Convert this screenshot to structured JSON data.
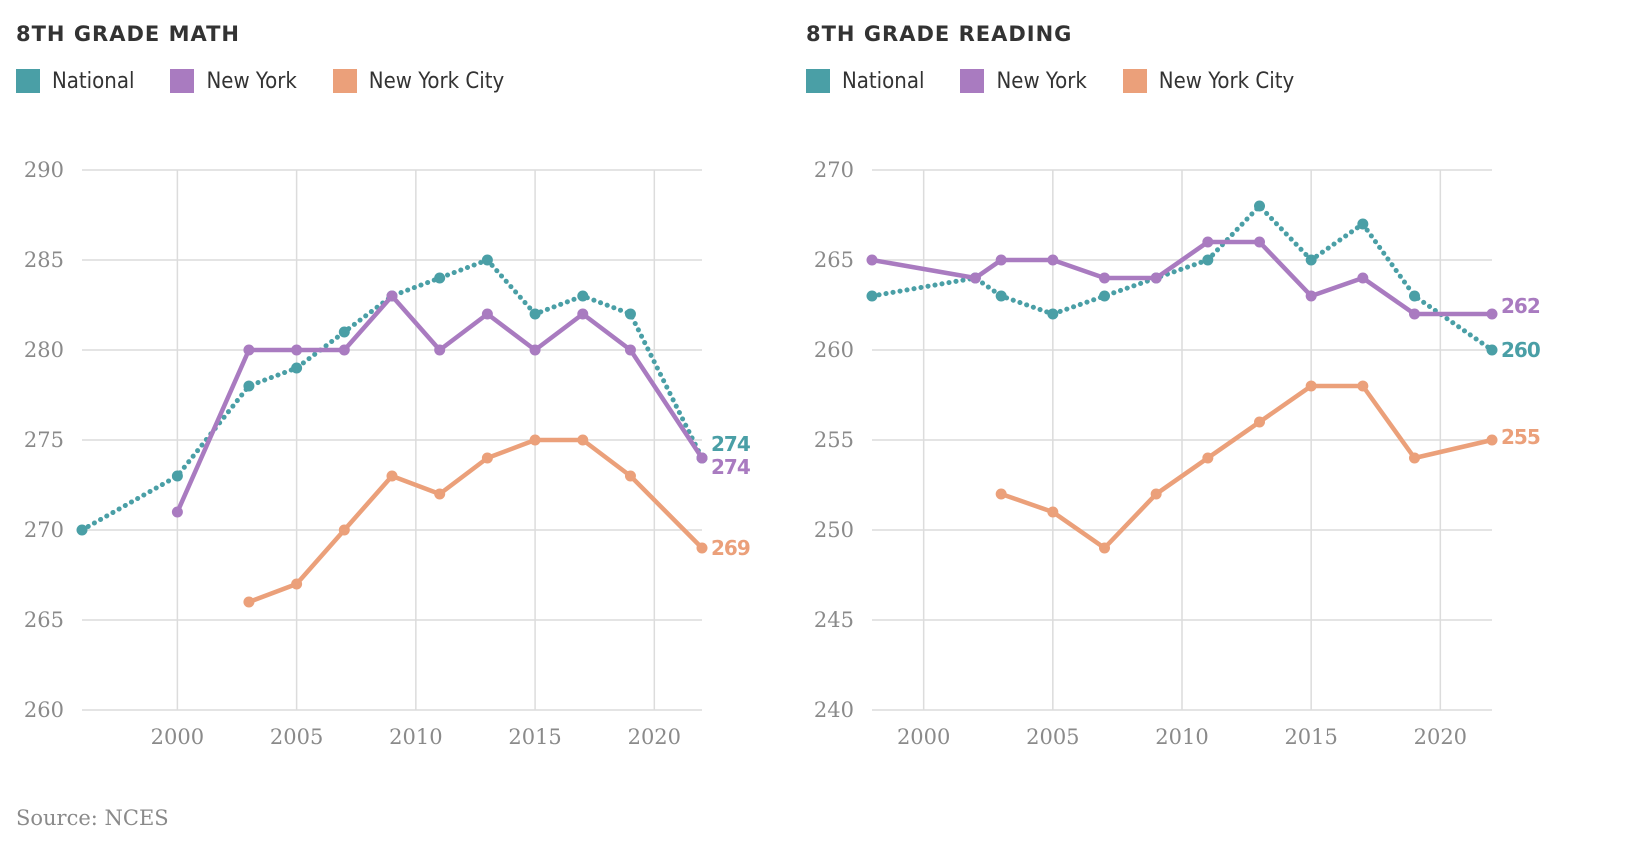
{
  "series_colors": {
    "National": "#4a9fa6",
    "New York": "#a97bc0",
    "New York City": "#eba07a"
  },
  "source": "Source: NCES",
  "chart_data": [
    {
      "type": "line",
      "title": "8TH GRADE MATH",
      "xlabel": "",
      "ylabel": "",
      "xlim": [
        1996,
        2022
      ],
      "ylim": [
        260,
        290
      ],
      "xticks": [
        2000,
        2005,
        2010,
        2015,
        2020
      ],
      "yticks": [
        290,
        285,
        280,
        275,
        270,
        265,
        260
      ],
      "grid": true,
      "legend_position": "top-left",
      "series": [
        {
          "name": "National",
          "style": "dotted",
          "x": [
            1996,
            2000,
            2003,
            2005,
            2007,
            2009,
            2011,
            2013,
            2015,
            2017,
            2019,
            2022
          ],
          "values": [
            270,
            273,
            278,
            279,
            281,
            283,
            284,
            285,
            282,
            283,
            282,
            274
          ],
          "end_label": "274"
        },
        {
          "name": "New York",
          "style": "solid",
          "x": [
            2000,
            2003,
            2005,
            2007,
            2009,
            2011,
            2013,
            2015,
            2017,
            2019,
            2022
          ],
          "values": [
            271,
            280,
            280,
            280,
            283,
            280,
            282,
            280,
            282,
            280,
            274
          ],
          "end_label": "274"
        },
        {
          "name": "New York City",
          "style": "solid",
          "x": [
            2003,
            2005,
            2007,
            2009,
            2011,
            2013,
            2015,
            2017,
            2019,
            2022
          ],
          "values": [
            266,
            267,
            270,
            273,
            272,
            274,
            275,
            275,
            273,
            269
          ],
          "end_label": "269"
        }
      ]
    },
    {
      "type": "line",
      "title": "8TH GRADE READING",
      "xlabel": "",
      "ylabel": "",
      "xlim": [
        1998,
        2022
      ],
      "ylim": [
        240,
        270
      ],
      "xticks": [
        2000,
        2005,
        2010,
        2015,
        2020
      ],
      "yticks": [
        270,
        265,
        260,
        255,
        250,
        245,
        240
      ],
      "grid": true,
      "legend_position": "top-left",
      "series": [
        {
          "name": "National",
          "style": "dotted",
          "x": [
            1998,
            2002,
            2003,
            2005,
            2007,
            2009,
            2011,
            2013,
            2015,
            2017,
            2019,
            2022
          ],
          "values": [
            263,
            264,
            263,
            262,
            263,
            264,
            265,
            268,
            265,
            267,
            263,
            260
          ],
          "end_label": "260"
        },
        {
          "name": "New York",
          "style": "solid",
          "x": [
            1998,
            2002,
            2003,
            2005,
            2007,
            2009,
            2011,
            2013,
            2015,
            2017,
            2019,
            2022
          ],
          "values": [
            265,
            264,
            265,
            265,
            264,
            264,
            266,
            266,
            263,
            264,
            262,
            262
          ],
          "end_label": "262"
        },
        {
          "name": "New York City",
          "style": "solid",
          "x": [
            2003,
            2005,
            2007,
            2009,
            2011,
            2013,
            2015,
            2017,
            2019,
            2022
          ],
          "values": [
            252,
            251,
            249,
            252,
            254,
            256,
            258,
            258,
            254,
            255
          ],
          "end_label": "255"
        }
      ]
    }
  ]
}
